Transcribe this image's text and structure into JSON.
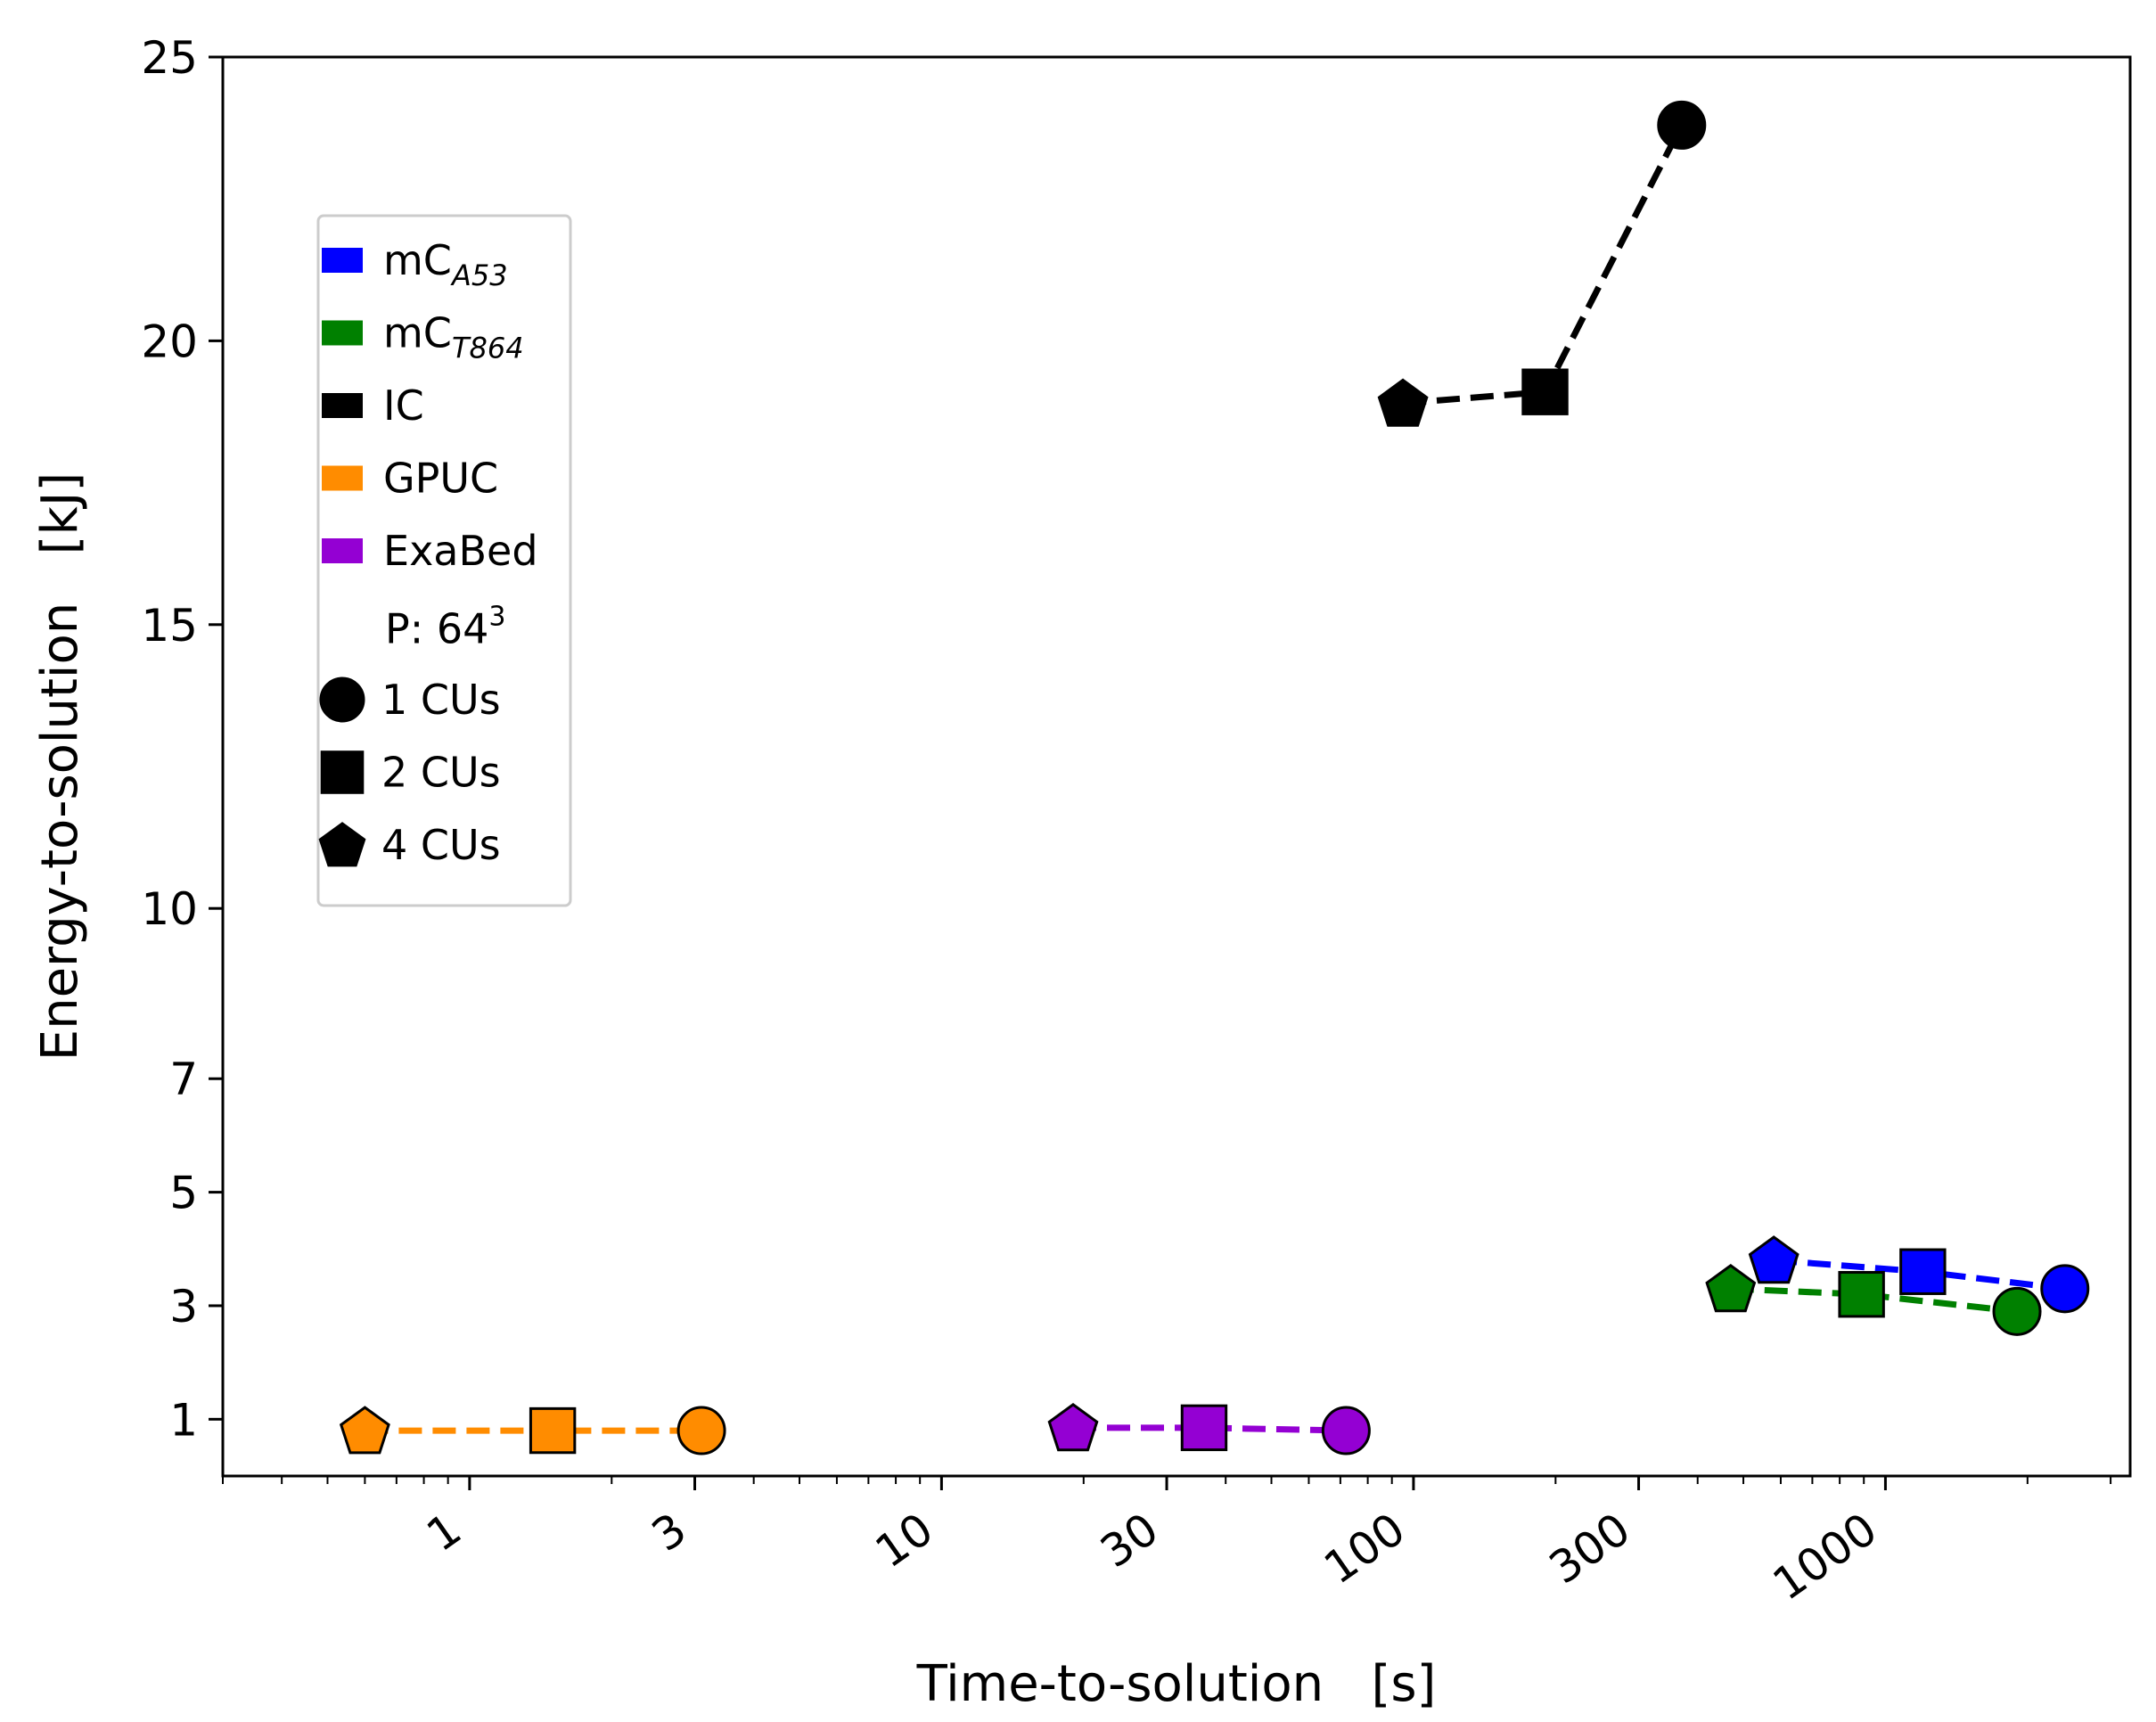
{
  "chart_data": {
    "type": "scatter",
    "xlabel": "Time-to-solution   [s]",
    "ylabel": "Energy-to-solution   [kJ]",
    "xscale": "log",
    "xlim": [
      0.3,
      3300
    ],
    "ylim": [
      0,
      25
    ],
    "x_ticks": [
      1,
      3,
      10,
      30,
      100,
      300,
      1000
    ],
    "x_tick_labels": [
      "1",
      "3",
      "10",
      "30",
      "100",
      "300",
      "1000"
    ],
    "y_ticks": [
      1,
      3,
      5,
      7,
      10,
      15,
      20,
      25
    ],
    "y_tick_labels": [
      "1",
      "3",
      "5",
      "7",
      "10",
      "15",
      "20",
      "25"
    ],
    "legend_position": "upper-left",
    "marker_legend_title": "P: 64",
    "marker_legend_title_sup": "3",
    "markers": [
      {
        "name": "1 CUs",
        "shape": "circle"
      },
      {
        "name": "2 CUs",
        "shape": "square"
      },
      {
        "name": "4 CUs",
        "shape": "pentagon"
      }
    ],
    "series": [
      {
        "name": "mC",
        "sub": "A53",
        "color": "#0000ff",
        "points": [
          {
            "x": 2400,
            "y": 3.3,
            "cus": 1
          },
          {
            "x": 1200,
            "y": 3.6,
            "cus": 2
          },
          {
            "x": 580,
            "y": 3.8,
            "cus": 4
          }
        ]
      },
      {
        "name": "mC",
        "sub": "T864",
        "color": "#008000",
        "points": [
          {
            "x": 1900,
            "y": 2.9,
            "cus": 1
          },
          {
            "x": 890,
            "y": 3.2,
            "cus": 2
          },
          {
            "x": 470,
            "y": 3.3,
            "cus": 4
          }
        ]
      },
      {
        "name": "IC",
        "sub": "",
        "color": "#000000",
        "points": [
          {
            "x": 370,
            "y": 23.8,
            "cus": 1
          },
          {
            "x": 190,
            "y": 19.1,
            "cus": 2
          },
          {
            "x": 95,
            "y": 18.9,
            "cus": 4
          }
        ]
      },
      {
        "name": "GPUC",
        "sub": "",
        "color": "#ff8c00",
        "points": [
          {
            "x": 3.1,
            "y": 0.8,
            "cus": 1
          },
          {
            "x": 1.5,
            "y": 0.8,
            "cus": 2
          },
          {
            "x": 0.6,
            "y": 0.8,
            "cus": 4
          }
        ]
      },
      {
        "name": "ExaBed",
        "sub": "",
        "color": "#9400d3",
        "points": [
          {
            "x": 72,
            "y": 0.8,
            "cus": 1
          },
          {
            "x": 36,
            "y": 0.85,
            "cus": 2
          },
          {
            "x": 19,
            "y": 0.85,
            "cus": 4
          }
        ]
      }
    ]
  }
}
